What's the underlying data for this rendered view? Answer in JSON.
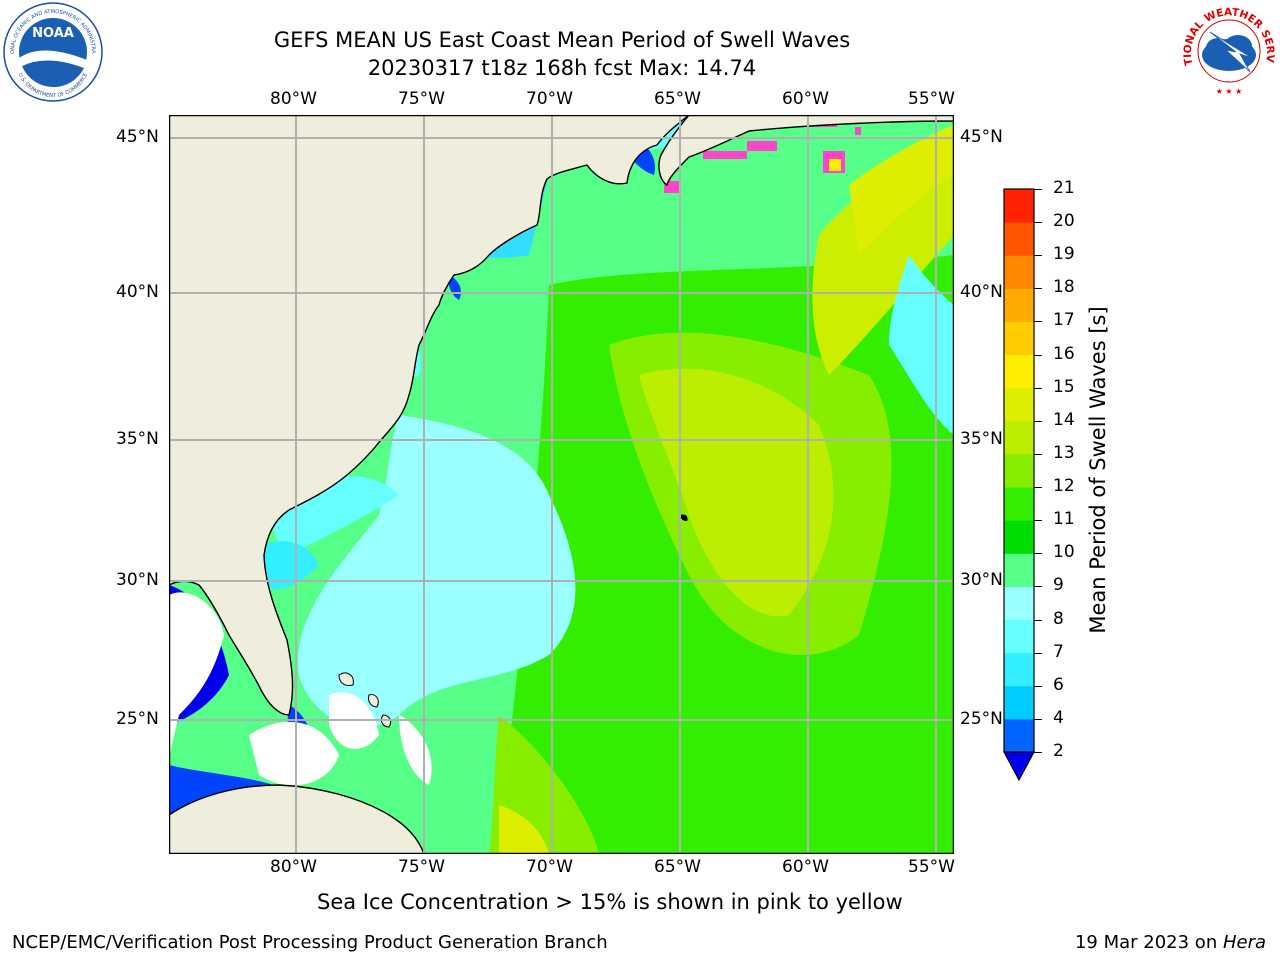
{
  "title": {
    "line1": "GEFS MEAN US East Coast Mean Period of Swell Waves",
    "line2": "20230317 t18z 168h fcst   Max: 14.74"
  },
  "map": {
    "lon_labels": [
      "80°W",
      "75°W",
      "70°W",
      "65°W",
      "60°W",
      "55°W"
    ],
    "lat_labels": [
      "45°N",
      "40°N",
      "35°N",
      "30°N",
      "25°N"
    ],
    "colors": {
      "land": "#efeedd",
      "grid": "#b0b0b0",
      "coast": "#000000"
    }
  },
  "colorbar": {
    "label": "Mean Period of Swell Waves [s]",
    "ticks": [
      "2",
      "4",
      "6",
      "7",
      "8",
      "9",
      "10",
      "11",
      "12",
      "13",
      "14",
      "15",
      "16",
      "17",
      "18",
      "19",
      "20",
      "21"
    ],
    "colors": [
      "#0066ff",
      "#00ccff",
      "#33eeff",
      "#66ffff",
      "#99ffff",
      "#55ff88",
      "#00dd00",
      "#33ee00",
      "#88ee00",
      "#bbee00",
      "#ddee00",
      "#ffee00",
      "#ffcc00",
      "#ffaa00",
      "#ff8800",
      "#ff5500",
      "#ff2200"
    ],
    "under_color": "#0000ee"
  },
  "caption": "Sea Ice Concentration > 15% is shown in pink to yellow",
  "footer": {
    "left": "NCEP/EMC/Verification Post Processing Product Generation Branch",
    "right_prefix": "19 Mar 2023 on ",
    "right_host": "Hera"
  },
  "logos": {
    "noaa_text": "NOAA",
    "noaa_ring_top": "NATIONAL OCEANIC AND ATMOSPHERIC ADMINISTRATION",
    "noaa_ring_bottom": "U.S. DEPARTMENT OF COMMERCE",
    "nws_ring": "NATIONAL WEATHER SERVICE"
  }
}
